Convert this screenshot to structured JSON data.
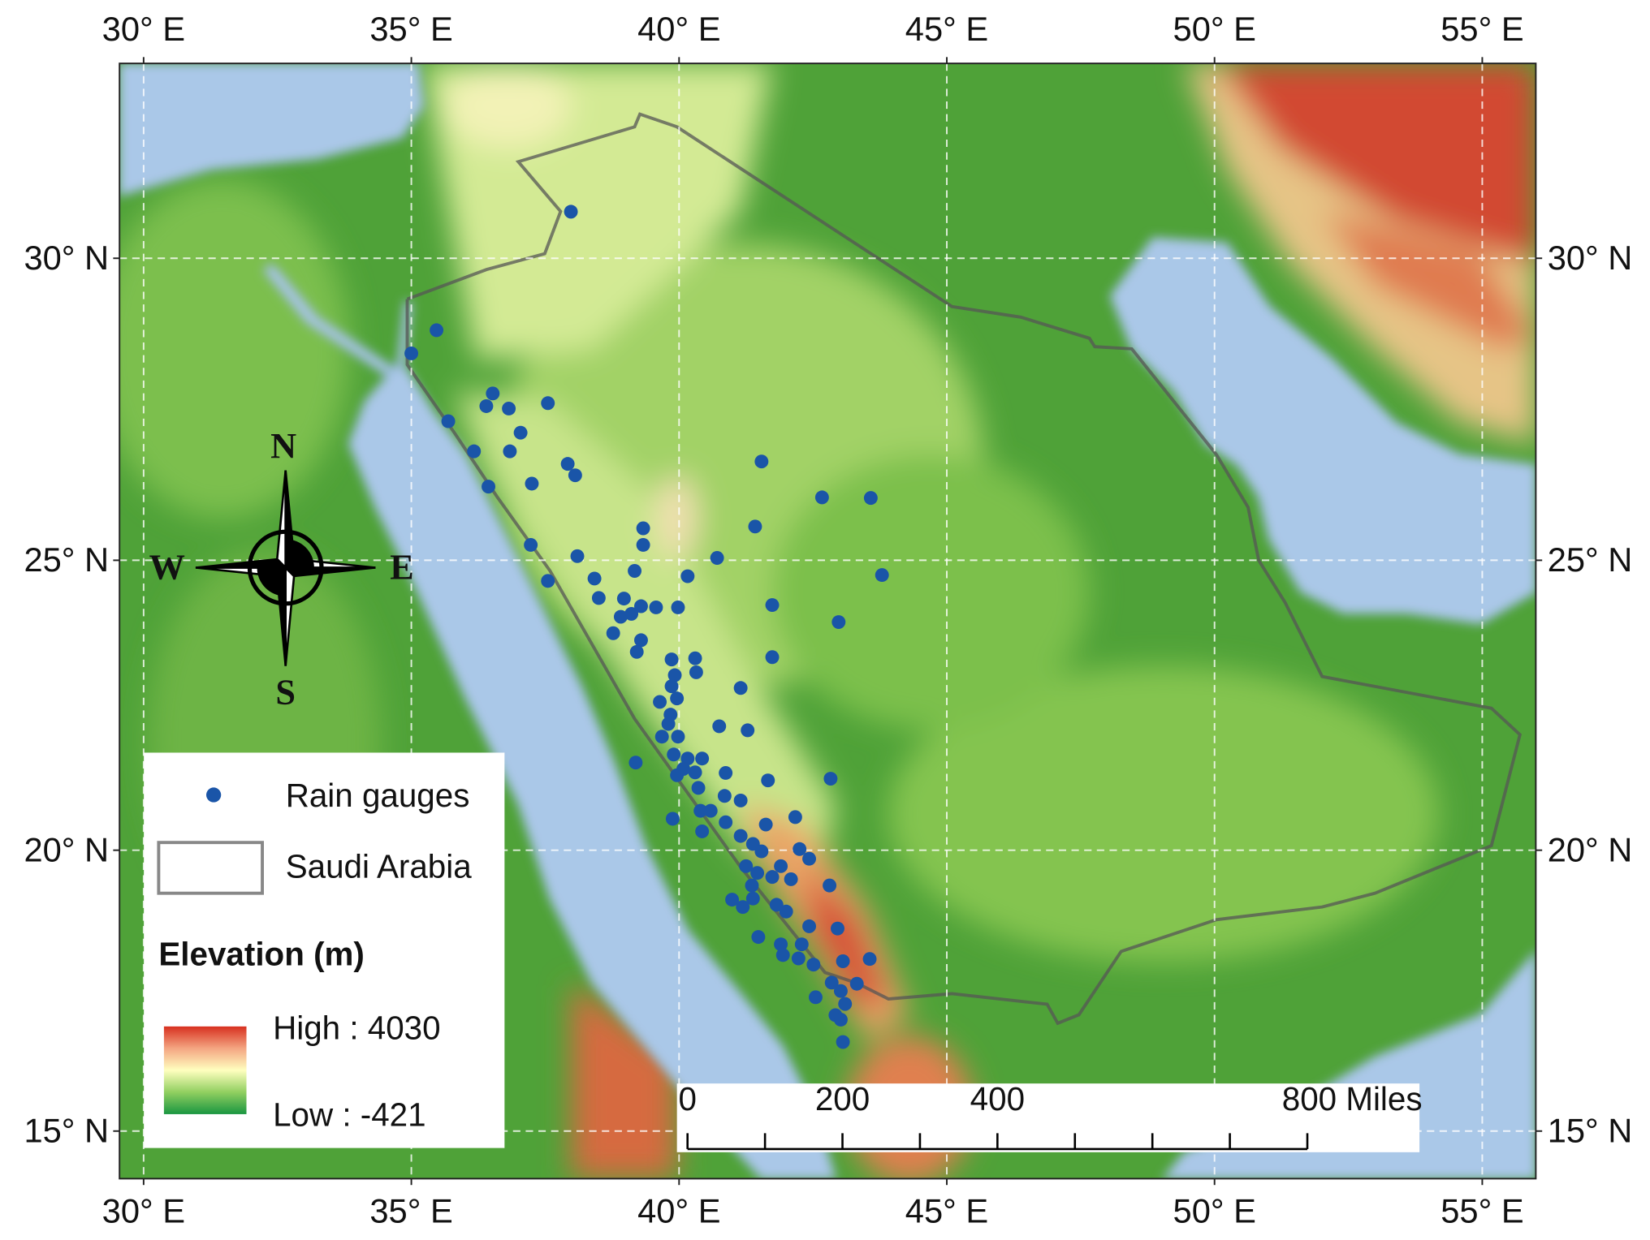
{
  "map": {
    "lonlim": [
      29.55,
      56.0
    ],
    "latlim": [
      14.14,
      33.1
    ],
    "grid": true,
    "lon_ticks": [
      {
        "value": 30,
        "label": "30° E"
      },
      {
        "value": 35,
        "label": "35° E"
      },
      {
        "value": 40,
        "label": "40° E"
      },
      {
        "value": 45,
        "label": "45° E"
      },
      {
        "value": 50,
        "label": "50° E"
      },
      {
        "value": 55,
        "label": "55° E"
      }
    ],
    "lat_ticks": [
      {
        "value": 15,
        "label": "15° N"
      },
      {
        "value": 20,
        "label": "20° N"
      },
      {
        "value": 25,
        "label": "25° N"
      },
      {
        "value": 30,
        "label": "30° N"
      }
    ],
    "gauges": {
      "color": "#1a55a8",
      "lon": [
        37.98,
        35.47,
        35.0,
        36.52,
        36.4,
        36.82,
        37.55,
        35.69,
        37.04,
        36.17,
        36.84,
        41.54,
        37.92,
        38.06,
        36.44,
        37.25,
        42.67,
        43.58,
        41.42,
        39.33,
        39.33,
        37.23,
        38.1,
        40.71,
        43.79,
        39.17,
        40.16,
        37.55,
        38.42,
        38.5,
        38.97,
        39.29,
        39.57,
        39.98,
        41.74,
        38.91,
        39.11,
        42.98,
        38.77,
        39.29,
        39.21,
        39.86,
        40.3,
        41.74,
        40.32,
        39.92,
        39.86,
        41.15,
        39.96,
        39.64,
        39.84,
        39.8,
        40.75,
        41.28,
        39.98,
        39.68,
        39.19,
        39.9,
        40.16,
        40.43,
        40.08,
        40.3,
        39.96,
        40.87,
        42.83,
        41.66,
        40.36,
        40.85,
        41.15,
        40.4,
        40.59,
        39.88,
        40.87,
        41.62,
        42.17,
        40.43,
        41.15,
        41.38,
        42.25,
        41.54,
        42.43,
        41.25,
        41.9,
        41.46,
        41.74,
        41.36,
        42.09,
        42.81,
        40.99,
        41.38,
        41.82,
        41.19,
        42.0,
        42.96,
        41.48,
        42.43,
        41.9,
        42.29,
        41.94,
        42.23,
        42.51,
        43.06,
        43.56,
        42.85,
        42.55,
        43.02,
        43.32,
        43.1,
        42.92,
        43.02,
        43.06
      ],
      "lat": [
        30.75,
        28.83,
        28.45,
        27.79,
        27.58,
        27.54,
        27.63,
        27.33,
        27.14,
        26.83,
        26.83,
        26.66,
        26.62,
        26.43,
        26.24,
        26.29,
        26.06,
        26.05,
        25.57,
        25.54,
        25.26,
        25.26,
        25.07,
        25.04,
        24.75,
        24.82,
        24.73,
        24.65,
        24.69,
        24.36,
        24.35,
        24.22,
        24.2,
        24.2,
        24.24,
        24.04,
        24.09,
        23.95,
        23.76,
        23.64,
        23.44,
        23.31,
        23.33,
        23.35,
        23.09,
        23.04,
        22.85,
        22.82,
        22.64,
        22.58,
        22.36,
        22.2,
        22.16,
        22.09,
        21.98,
        21.98,
        21.53,
        21.67,
        21.6,
        21.6,
        21.42,
        21.36,
        21.31,
        21.35,
        21.25,
        21.22,
        21.09,
        20.95,
        20.87,
        20.69,
        20.69,
        20.55,
        20.49,
        20.45,
        20.58,
        20.33,
        20.25,
        20.11,
        20.02,
        19.98,
        19.85,
        19.72,
        19.72,
        19.6,
        19.53,
        19.38,
        19.49,
        19.38,
        19.13,
        19.15,
        19.04,
        19.0,
        18.92,
        18.62,
        18.47,
        18.66,
        18.34,
        18.34,
        18.15,
        18.09,
        17.98,
        18.04,
        18.08,
        17.66,
        17.4,
        17.51,
        17.64,
        17.28,
        17.08,
        17.0,
        16.6
      ]
    }
  },
  "compass": {
    "n": "N",
    "s": "S",
    "w": "W",
    "e": "E"
  },
  "legend": {
    "gauges": "Rain gauges",
    "boundary": "Saudi Arabia",
    "elevation_title": "Elevation (m)",
    "high": "High : 4030",
    "low": "Low : -421"
  },
  "scale_bar": {
    "ticks": [
      {
        "value": 0,
        "label": "0"
      },
      {
        "value": 200,
        "label": "200"
      },
      {
        "value": 400,
        "label": "400"
      },
      {
        "value": 800,
        "label": "800 Miles"
      }
    ]
  }
}
